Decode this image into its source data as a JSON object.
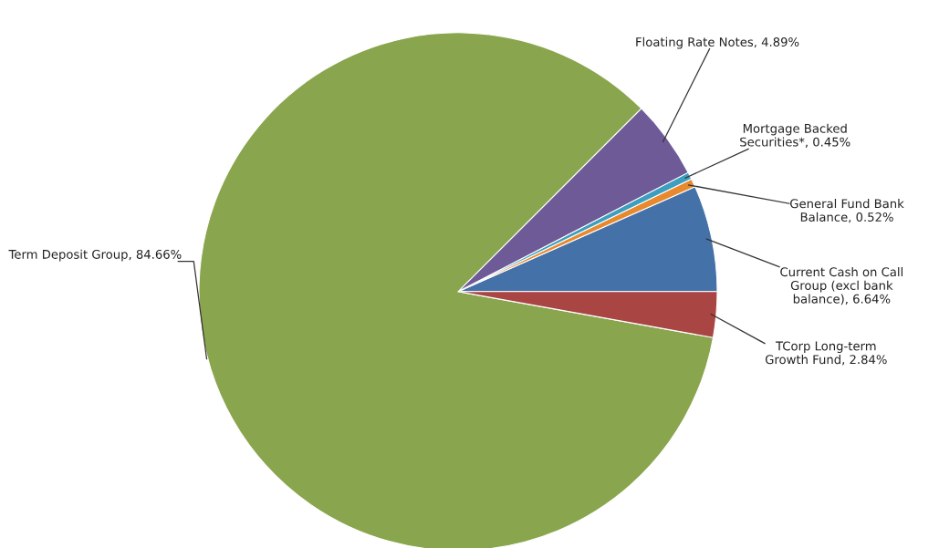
{
  "chart_data": {
    "type": "pie",
    "categories": [
      "Current Cash on Call Group (excl bank balance)",
      "General Fund Bank Balance",
      "Mortgage Backed Securities*",
      "Floating Rate Notes",
      "Term Deposit Group",
      "TCorp Long-term Growth Fund"
    ],
    "values": [
      6.64,
      0.52,
      0.45,
      4.89,
      84.66,
      2.84
    ],
    "colors": [
      "#4472a8",
      "#e8892f",
      "#3c9fbf",
      "#6e5a96",
      "#89a54e",
      "#a94543"
    ],
    "value_labels": [
      "6.64%",
      "0.52%",
      "0.45%",
      "4.89%",
      "84.66%",
      "2.84%"
    ],
    "legend": false
  }
}
